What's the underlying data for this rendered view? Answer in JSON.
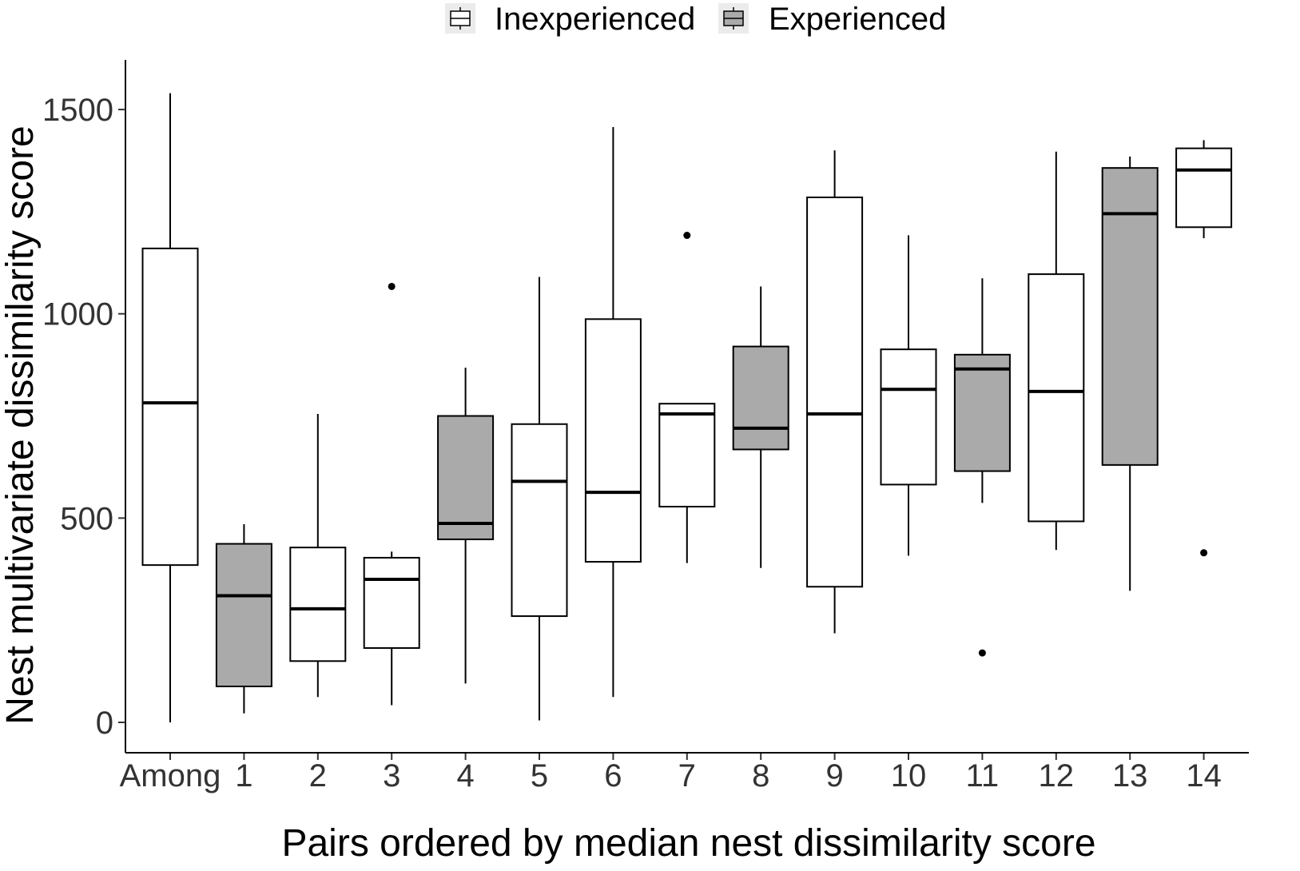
{
  "chart_data": {
    "type": "boxplot",
    "xlabel": "Pairs ordered by median nest dissimilarity score",
    "ylabel": "Nest multivariate dissimilarity score",
    "ylim": [
      -75,
      1610
    ],
    "yticks": [
      0,
      500,
      1000,
      1500
    ],
    "grid": false,
    "legend": {
      "placement": "top",
      "entries": [
        {
          "label": "Inexperienced",
          "fill": "#ffffff"
        },
        {
          "label": "Experienced",
          "fill": "#aaaaaa"
        }
      ]
    },
    "colors": {
      "Inexperienced": "#ffffff",
      "Experienced": "#aaaaaa",
      "stroke": "#000000"
    },
    "boxes": [
      {
        "category": "Among",
        "group": "Inexperienced",
        "whisker_low": 0,
        "q1": 385,
        "median": 782,
        "q3": 1160,
        "whisker_high": 1540,
        "outliers": []
      },
      {
        "category": "1",
        "group": "Experienced",
        "whisker_low": 22,
        "q1": 88,
        "median": 310,
        "q3": 437,
        "whisker_high": 485,
        "outliers": []
      },
      {
        "category": "2",
        "group": "Inexperienced",
        "whisker_low": 62,
        "q1": 150,
        "median": 278,
        "q3": 428,
        "whisker_high": 755,
        "outliers": []
      },
      {
        "category": "3",
        "group": "Inexperienced",
        "whisker_low": 42,
        "q1": 182,
        "median": 350,
        "q3": 403,
        "whisker_high": 418,
        "outliers": [
          1067
        ]
      },
      {
        "category": "4",
        "group": "Experienced",
        "whisker_low": 95,
        "q1": 448,
        "median": 487,
        "q3": 750,
        "whisker_high": 868,
        "outliers": []
      },
      {
        "category": "5",
        "group": "Inexperienced",
        "whisker_low": 5,
        "q1": 260,
        "median": 590,
        "q3": 730,
        "whisker_high": 1090,
        "outliers": []
      },
      {
        "category": "6",
        "group": "Inexperienced",
        "whisker_low": 62,
        "q1": 393,
        "median": 563,
        "q3": 987,
        "whisker_high": 1457,
        "outliers": []
      },
      {
        "category": "7",
        "group": "Inexperienced",
        "whisker_low": 390,
        "q1": 528,
        "median": 755,
        "q3": 780,
        "whisker_high": 780,
        "outliers": [
          1192
        ]
      },
      {
        "category": "8",
        "group": "Experienced",
        "whisker_low": 378,
        "q1": 668,
        "median": 720,
        "q3": 920,
        "whisker_high": 1067,
        "outliers": []
      },
      {
        "category": "9",
        "group": "Inexperienced",
        "whisker_low": 218,
        "q1": 332,
        "median": 755,
        "q3": 1285,
        "whisker_high": 1400,
        "outliers": []
      },
      {
        "category": "10",
        "group": "Inexperienced",
        "whisker_low": 408,
        "q1": 582,
        "median": 815,
        "q3": 913,
        "whisker_high": 1192,
        "outliers": []
      },
      {
        "category": "11",
        "group": "Experienced",
        "whisker_low": 537,
        "q1": 615,
        "median": 865,
        "q3": 900,
        "whisker_high": 1087,
        "outliers": [
          170
        ]
      },
      {
        "category": "12",
        "group": "Inexperienced",
        "whisker_low": 422,
        "q1": 492,
        "median": 810,
        "q3": 1097,
        "whisker_high": 1397,
        "outliers": []
      },
      {
        "category": "13",
        "group": "Experienced",
        "whisker_low": 322,
        "q1": 630,
        "median": 1245,
        "q3": 1357,
        "whisker_high": 1385,
        "outliers": []
      },
      {
        "category": "14",
        "group": "Inexperienced",
        "whisker_low": 1185,
        "q1": 1212,
        "median": 1352,
        "q3": 1405,
        "whisker_high": 1425,
        "outliers": [
          415
        ]
      }
    ]
  }
}
